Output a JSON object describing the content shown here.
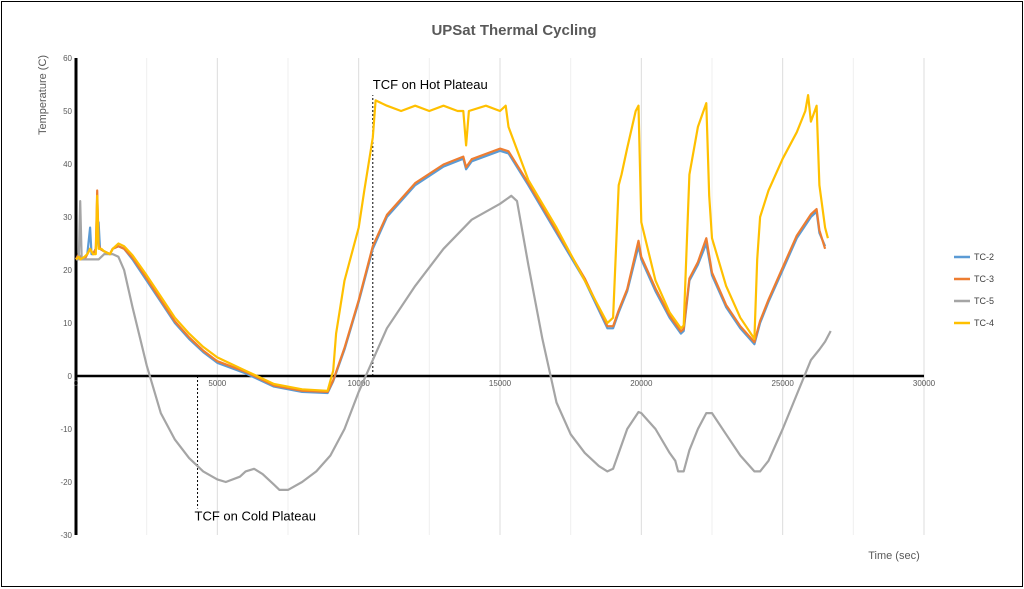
{
  "chart_data": {
    "type": "line",
    "title": "UPSat Thermal Cycling",
    "xlabel": "Time (sec)",
    "ylabel": "Temperature (C)",
    "xlim": [
      0,
      30000
    ],
    "ylim": [
      -30,
      60
    ],
    "x_ticks": [
      0,
      5000,
      10000,
      15000,
      20000,
      25000,
      30000
    ],
    "y_ticks": [
      -30,
      -20,
      -10,
      0,
      10,
      20,
      30,
      40,
      50,
      60
    ],
    "grid": "vertical",
    "legend_position": "right",
    "annotations": [
      {
        "text": "TCF on Hot Plateau",
        "x": 10500,
        "y_from": 0,
        "y_to": 53
      },
      {
        "text": "TCF on Cold Plateau",
        "x": 4300,
        "y_from": 0,
        "y_to": -25
      }
    ],
    "series": [
      {
        "name": "TC-2",
        "color": "#5B9BD5",
        "points": [
          [
            0,
            22
          ],
          [
            100,
            23
          ],
          [
            150,
            22
          ],
          [
            300,
            22
          ],
          [
            400,
            23
          ],
          [
            500,
            28
          ],
          [
            550,
            23
          ],
          [
            600,
            23
          ],
          [
            700,
            24
          ],
          [
            800,
            29
          ],
          [
            850,
            24
          ],
          [
            1000,
            23.5
          ],
          [
            1200,
            23
          ],
          [
            1300,
            24
          ],
          [
            1500,
            24.5
          ],
          [
            1700,
            24
          ],
          [
            2000,
            22
          ],
          [
            2500,
            18
          ],
          [
            3000,
            14
          ],
          [
            3500,
            10
          ],
          [
            4000,
            7
          ],
          [
            4500,
            4.5
          ],
          [
            5000,
            2.5
          ],
          [
            6000,
            0.5
          ],
          [
            7000,
            -2
          ],
          [
            8000,
            -3
          ],
          [
            8900,
            -3.2
          ],
          [
            9100,
            -1
          ],
          [
            9500,
            5
          ],
          [
            10000,
            14
          ],
          [
            10500,
            24
          ],
          [
            11000,
            30
          ],
          [
            12000,
            36
          ],
          [
            13000,
            39.5
          ],
          [
            13700,
            41
          ],
          [
            13800,
            39
          ],
          [
            14000,
            40.5
          ],
          [
            15000,
            42.5
          ],
          [
            15300,
            42
          ],
          [
            16000,
            36
          ],
          [
            17000,
            27
          ],
          [
            18000,
            18
          ],
          [
            18800,
            9
          ],
          [
            19000,
            9
          ],
          [
            19200,
            12
          ],
          [
            19500,
            16
          ],
          [
            19900,
            24.5
          ],
          [
            20000,
            22
          ],
          [
            20500,
            16
          ],
          [
            21000,
            11
          ],
          [
            21400,
            8
          ],
          [
            21500,
            8.5
          ],
          [
            21700,
            18
          ],
          [
            22000,
            21
          ],
          [
            22300,
            25
          ],
          [
            22500,
            19
          ],
          [
            23000,
            13
          ],
          [
            23500,
            9
          ],
          [
            24000,
            6
          ],
          [
            24200,
            10
          ],
          [
            24500,
            14
          ],
          [
            25000,
            20
          ],
          [
            25500,
            26
          ],
          [
            26000,
            30
          ],
          [
            26200,
            31
          ],
          [
            26300,
            27
          ],
          [
            26500,
            24.5
          ]
        ]
      },
      {
        "name": "TC-3",
        "color": "#ED7D31",
        "points": [
          [
            0,
            22
          ],
          [
            100,
            23
          ],
          [
            150,
            22
          ],
          [
            300,
            22
          ],
          [
            400,
            23
          ],
          [
            500,
            24
          ],
          [
            600,
            23
          ],
          [
            700,
            24
          ],
          [
            750,
            35
          ],
          [
            800,
            25
          ],
          [
            850,
            24
          ],
          [
            1000,
            23.5
          ],
          [
            1200,
            23
          ],
          [
            1300,
            24
          ],
          [
            1500,
            24.5
          ],
          [
            1700,
            24
          ],
          [
            2000,
            22.3
          ],
          [
            2500,
            18.4
          ],
          [
            3000,
            14.3
          ],
          [
            3500,
            10.3
          ],
          [
            4000,
            7.3
          ],
          [
            4500,
            4.8
          ],
          [
            5000,
            2.8
          ],
          [
            6000,
            0.8
          ],
          [
            7000,
            -1.8
          ],
          [
            8000,
            -2.8
          ],
          [
            8900,
            -3
          ],
          [
            9100,
            -0.8
          ],
          [
            9500,
            5.3
          ],
          [
            10000,
            14.3
          ],
          [
            10500,
            24.5
          ],
          [
            11000,
            30.4
          ],
          [
            12000,
            36.4
          ],
          [
            13000,
            39.9
          ],
          [
            13700,
            41.4
          ],
          [
            13800,
            39.4
          ],
          [
            14000,
            40.9
          ],
          [
            15000,
            42.9
          ],
          [
            15300,
            42.4
          ],
          [
            16000,
            36.4
          ],
          [
            17000,
            27.4
          ],
          [
            18000,
            18.4
          ],
          [
            18800,
            9.4
          ],
          [
            19000,
            9.4
          ],
          [
            19200,
            12.4
          ],
          [
            19500,
            16.4
          ],
          [
            19900,
            25.5
          ],
          [
            20000,
            22.5
          ],
          [
            20500,
            16.5
          ],
          [
            21000,
            11.4
          ],
          [
            21400,
            8.4
          ],
          [
            21500,
            8.9
          ],
          [
            21700,
            18.4
          ],
          [
            22000,
            21.5
          ],
          [
            22300,
            26
          ],
          [
            22500,
            19.5
          ],
          [
            23000,
            13.4
          ],
          [
            23500,
            9.4
          ],
          [
            24000,
            6.4
          ],
          [
            24200,
            10.4
          ],
          [
            24500,
            14.4
          ],
          [
            25000,
            20.5
          ],
          [
            25500,
            26.5
          ],
          [
            26000,
            30.5
          ],
          [
            26200,
            31.5
          ],
          [
            26300,
            27.5
          ],
          [
            26500,
            24
          ]
        ]
      },
      {
        "name": "TC-5",
        "color": "#A5A5A5",
        "points": [
          [
            0,
            22
          ],
          [
            100,
            22
          ],
          [
            150,
            33
          ],
          [
            200,
            22
          ],
          [
            400,
            22
          ],
          [
            600,
            22
          ],
          [
            800,
            22
          ],
          [
            1000,
            23
          ],
          [
            1300,
            23
          ],
          [
            1500,
            22.5
          ],
          [
            1700,
            20
          ],
          [
            2000,
            13
          ],
          [
            2500,
            2
          ],
          [
            3000,
            -7
          ],
          [
            3500,
            -12
          ],
          [
            4000,
            -15.5
          ],
          [
            4500,
            -18
          ],
          [
            5000,
            -19.5
          ],
          [
            5300,
            -20
          ],
          [
            5800,
            -19
          ],
          [
            6000,
            -18
          ],
          [
            6300,
            -17.5
          ],
          [
            6600,
            -18.5
          ],
          [
            7000,
            -20.5
          ],
          [
            7200,
            -21.5
          ],
          [
            7500,
            -21.5
          ],
          [
            8000,
            -20
          ],
          [
            8500,
            -18
          ],
          [
            9000,
            -15
          ],
          [
            9500,
            -10
          ],
          [
            10000,
            -3
          ],
          [
            10500,
            3
          ],
          [
            11000,
            9
          ],
          [
            12000,
            17
          ],
          [
            13000,
            24
          ],
          [
            14000,
            29.5
          ],
          [
            15000,
            32.5
          ],
          [
            15400,
            34
          ],
          [
            15600,
            33
          ],
          [
            16000,
            21
          ],
          [
            16500,
            7
          ],
          [
            17000,
            -5
          ],
          [
            17500,
            -11
          ],
          [
            18000,
            -14.5
          ],
          [
            18500,
            -17
          ],
          [
            18800,
            -18
          ],
          [
            19000,
            -17.5
          ],
          [
            19500,
            -10
          ],
          [
            19900,
            -6.8
          ],
          [
            20000,
            -7
          ],
          [
            20500,
            -10
          ],
          [
            21000,
            -14.5
          ],
          [
            21200,
            -16
          ],
          [
            21300,
            -18
          ],
          [
            21500,
            -18
          ],
          [
            21700,
            -14
          ],
          [
            22000,
            -10
          ],
          [
            22300,
            -7
          ],
          [
            22500,
            -7
          ],
          [
            23000,
            -11
          ],
          [
            23500,
            -15
          ],
          [
            24000,
            -18
          ],
          [
            24200,
            -18
          ],
          [
            24500,
            -16
          ],
          [
            25000,
            -10
          ],
          [
            25500,
            -3.5
          ],
          [
            26000,
            3
          ],
          [
            26300,
            5
          ],
          [
            26500,
            6.5
          ],
          [
            26700,
            8.5
          ]
        ]
      },
      {
        "name": "TC-4",
        "color": "#FFC000",
        "points": [
          [
            0,
            22
          ],
          [
            100,
            22.5
          ],
          [
            150,
            22
          ],
          [
            300,
            22.5
          ],
          [
            400,
            23
          ],
          [
            500,
            24
          ],
          [
            600,
            23
          ],
          [
            700,
            23
          ],
          [
            750,
            34
          ],
          [
            800,
            24
          ],
          [
            900,
            24
          ],
          [
            1000,
            23.5
          ],
          [
            1200,
            23
          ],
          [
            1300,
            24
          ],
          [
            1500,
            25
          ],
          [
            1700,
            24.5
          ],
          [
            2000,
            22.8
          ],
          [
            2500,
            19
          ],
          [
            3000,
            15
          ],
          [
            3500,
            11
          ],
          [
            4000,
            8
          ],
          [
            4500,
            5.5
          ],
          [
            5000,
            3.5
          ],
          [
            6000,
            1
          ],
          [
            7000,
            -1.5
          ],
          [
            8000,
            -2.5
          ],
          [
            8900,
            -2.8
          ],
          [
            9100,
            1
          ],
          [
            9200,
            8
          ],
          [
            9500,
            18
          ],
          [
            10000,
            28
          ],
          [
            10200,
            35
          ],
          [
            10500,
            45
          ],
          [
            10600,
            52
          ],
          [
            11000,
            51
          ],
          [
            11500,
            50
          ],
          [
            12000,
            51
          ],
          [
            12500,
            50
          ],
          [
            13000,
            51
          ],
          [
            13500,
            50
          ],
          [
            13700,
            50
          ],
          [
            13800,
            43.5
          ],
          [
            13900,
            50
          ],
          [
            14500,
            51
          ],
          [
            15000,
            50
          ],
          [
            15200,
            51
          ],
          [
            15300,
            47
          ],
          [
            16000,
            37
          ],
          [
            17000,
            28
          ],
          [
            18000,
            18
          ],
          [
            18800,
            10
          ],
          [
            19000,
            11
          ],
          [
            19200,
            36
          ],
          [
            19300,
            38
          ],
          [
            19500,
            43
          ],
          [
            19800,
            50
          ],
          [
            19900,
            51
          ],
          [
            20000,
            29
          ],
          [
            20500,
            18
          ],
          [
            21000,
            12
          ],
          [
            21400,
            9
          ],
          [
            21500,
            9.5
          ],
          [
            21700,
            38
          ],
          [
            22000,
            47
          ],
          [
            22200,
            50
          ],
          [
            22300,
            51.5
          ],
          [
            22400,
            34
          ],
          [
            22500,
            26
          ],
          [
            23000,
            17
          ],
          [
            23500,
            11
          ],
          [
            24000,
            7
          ],
          [
            24100,
            22
          ],
          [
            24200,
            30
          ],
          [
            24500,
            35
          ],
          [
            25000,
            41
          ],
          [
            25500,
            46
          ],
          [
            25800,
            50
          ],
          [
            25900,
            53
          ],
          [
            26000,
            48
          ],
          [
            26200,
            51
          ],
          [
            26300,
            36
          ],
          [
            26500,
            28
          ],
          [
            26600,
            26
          ]
        ]
      }
    ]
  }
}
